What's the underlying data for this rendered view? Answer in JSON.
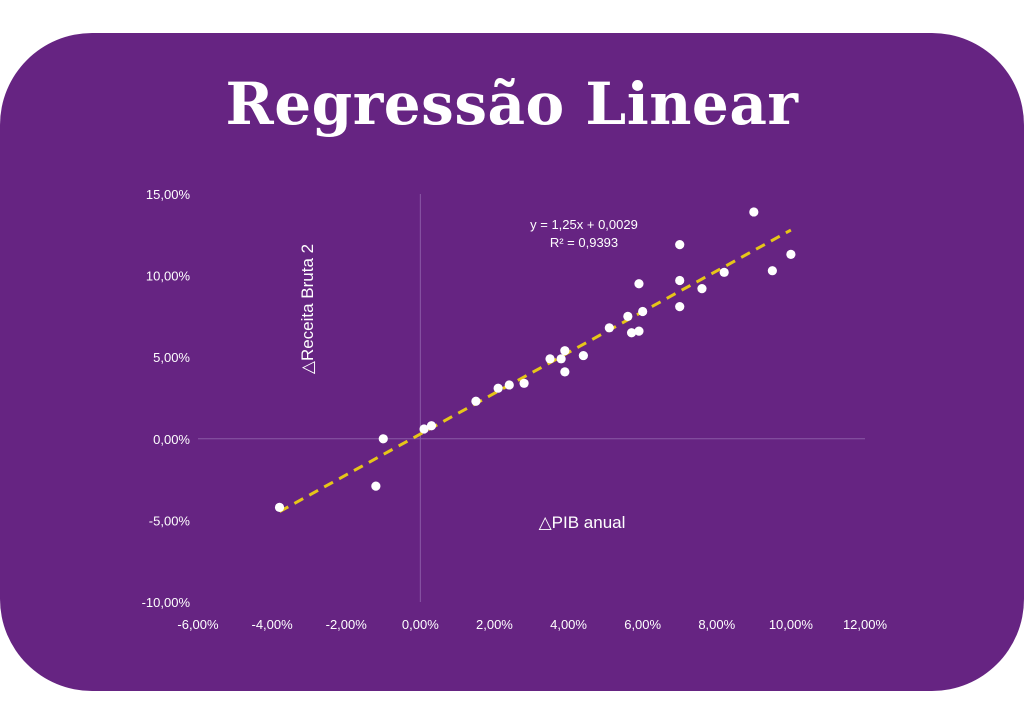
{
  "page": {
    "title": "Regressão Linear"
  },
  "colors": {
    "background": "#662482",
    "points": "#ffffff",
    "trendline": "#e6c619",
    "axis": "#8a5aa6"
  },
  "chart_data": {
    "type": "scatter",
    "title": "",
    "xlabel": "△PIB anual",
    "ylabel": "△Receita Bruta 2",
    "xlim": [
      -0.06,
      0.12
    ],
    "ylim": [
      -0.1,
      0.15
    ],
    "x_ticks": [
      -0.06,
      -0.04,
      -0.02,
      0.0,
      0.02,
      0.04,
      0.06,
      0.08,
      0.1,
      0.12
    ],
    "x_tick_labels": [
      "-6,00%",
      "-4,00%",
      "-2,00%",
      "0,00%",
      "2,00%",
      "4,00%",
      "6,00%",
      "8,00%",
      "10,00%",
      "12,00%"
    ],
    "y_ticks": [
      -0.1,
      -0.05,
      0.0,
      0.05,
      0.1,
      0.15
    ],
    "y_tick_labels": [
      "-10,00%",
      "-5,00%",
      "0,00%",
      "5,00%",
      "10,00%",
      "15,00%"
    ],
    "grid": false,
    "trendline": {
      "slope": 1.25,
      "intercept": 0.0029,
      "x_range": [
        -0.038,
        0.1
      ],
      "style": "dashed",
      "equation": "y = 1,25x + 0,0029",
      "r_squared": "R² = 0,9393"
    },
    "points": [
      {
        "x": -0.038,
        "y": -0.042
      },
      {
        "x": -0.012,
        "y": -0.029
      },
      {
        "x": -0.01,
        "y": 0.0
      },
      {
        "x": 0.001,
        "y": 0.006
      },
      {
        "x": 0.003,
        "y": 0.008
      },
      {
        "x": 0.015,
        "y": 0.023
      },
      {
        "x": 0.021,
        "y": 0.031
      },
      {
        "x": 0.024,
        "y": 0.033
      },
      {
        "x": 0.028,
        "y": 0.034
      },
      {
        "x": 0.035,
        "y": 0.049
      },
      {
        "x": 0.038,
        "y": 0.049
      },
      {
        "x": 0.039,
        "y": 0.054
      },
      {
        "x": 0.039,
        "y": 0.041
      },
      {
        "x": 0.044,
        "y": 0.051
      },
      {
        "x": 0.051,
        "y": 0.068
      },
      {
        "x": 0.056,
        "y": 0.075
      },
      {
        "x": 0.057,
        "y": 0.065
      },
      {
        "x": 0.059,
        "y": 0.095
      },
      {
        "x": 0.059,
        "y": 0.066
      },
      {
        "x": 0.06,
        "y": 0.078
      },
      {
        "x": 0.07,
        "y": 0.119
      },
      {
        "x": 0.07,
        "y": 0.097
      },
      {
        "x": 0.07,
        "y": 0.081
      },
      {
        "x": 0.076,
        "y": 0.092
      },
      {
        "x": 0.082,
        "y": 0.102
      },
      {
        "x": 0.09,
        "y": 0.139
      },
      {
        "x": 0.095,
        "y": 0.103
      },
      {
        "x": 0.1,
        "y": 0.113
      }
    ]
  }
}
